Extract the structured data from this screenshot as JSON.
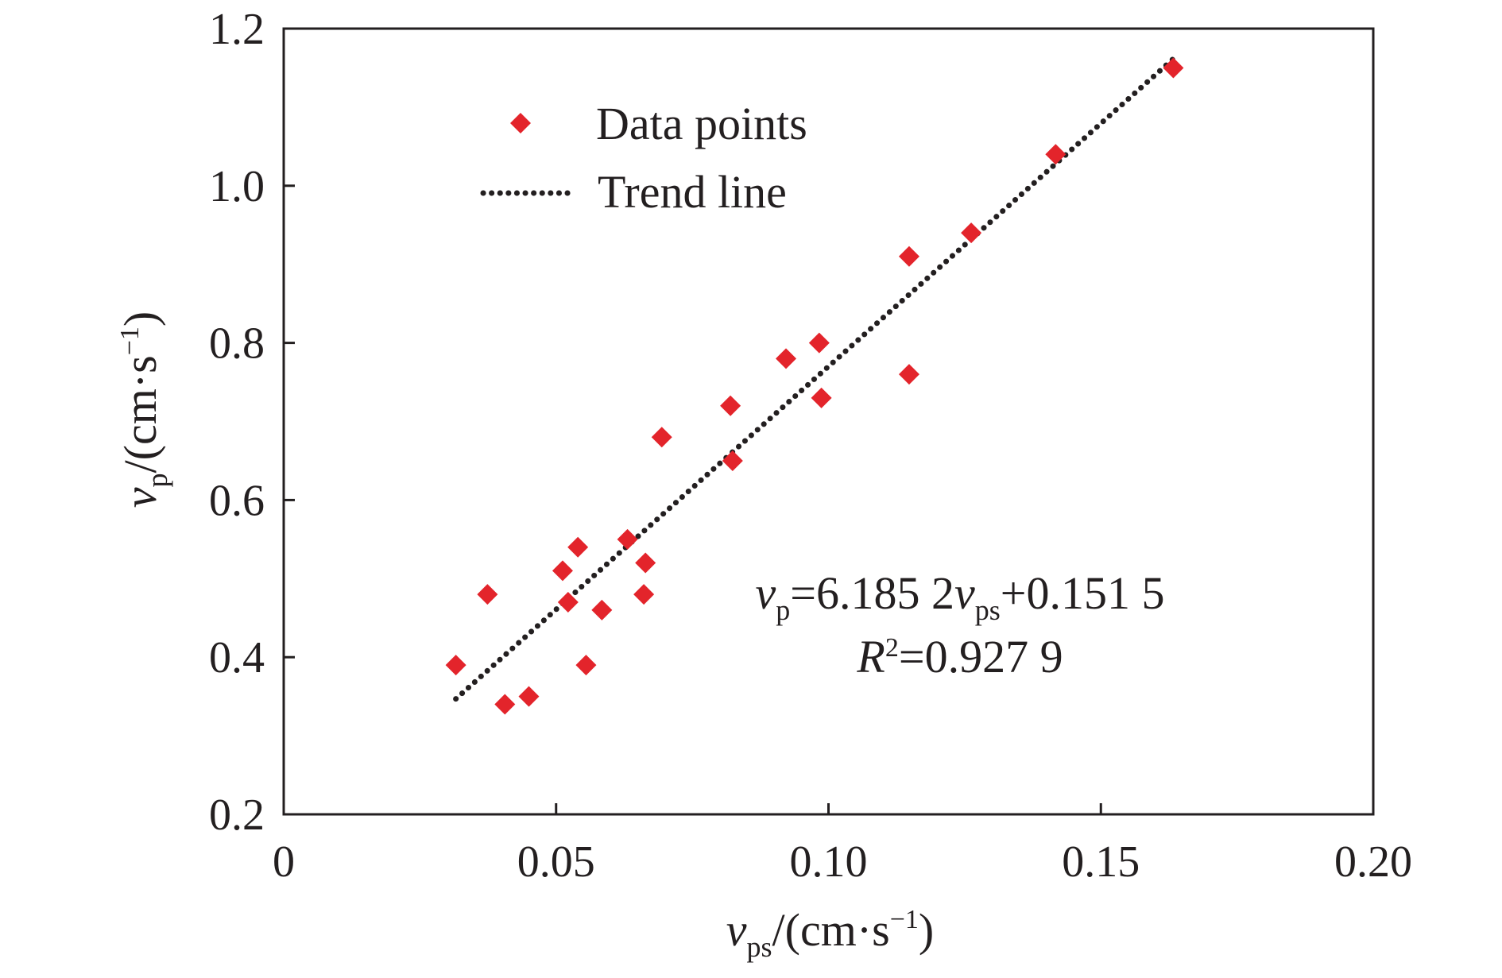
{
  "chart_data": {
    "type": "scatter",
    "title": "",
    "xlim": [
      0,
      0.2
    ],
    "ylim": [
      0.2,
      1.2
    ],
    "x_ticks": [
      "0",
      "0.05",
      "0.10",
      "0.15",
      "0.20"
    ],
    "y_ticks": [
      "0.2",
      "0.4",
      "0.6",
      "0.8",
      "1.0",
      "1.2"
    ],
    "x_tick_values": [
      0,
      0.05,
      0.1,
      0.15,
      0.2
    ],
    "y_tick_values": [
      0.2,
      0.4,
      0.6,
      0.8,
      1.0,
      1.2
    ],
    "xlabel": {
      "symbol": "v",
      "subscript": "ps",
      "unit_open": "/(cm·s",
      "unit_sup": "−1",
      "unit_close": ")"
    },
    "ylabel": {
      "symbol": "v",
      "subscript": "p",
      "unit_open": "/(cm·s",
      "unit_sup": "−1",
      "unit_close": ")"
    },
    "grid": false,
    "legend": {
      "placement": "top-left",
      "entries": [
        {
          "label": "Data points",
          "marker": "diamond"
        },
        {
          "label": "Trend line",
          "marker": "dotted-line"
        }
      ]
    },
    "series": [
      {
        "name": "Data points",
        "marker": "diamond",
        "color": "#e3242b",
        "points": [
          [
            0.0316,
            0.39
          ],
          [
            0.0374,
            0.48
          ],
          [
            0.0406,
            0.34
          ],
          [
            0.045,
            0.35
          ],
          [
            0.0512,
            0.51
          ],
          [
            0.0522,
            0.47
          ],
          [
            0.054,
            0.54
          ],
          [
            0.0555,
            0.39
          ],
          [
            0.0584,
            0.46
          ],
          [
            0.0631,
            0.55
          ],
          [
            0.0661,
            0.48
          ],
          [
            0.0664,
            0.52
          ],
          [
            0.0694,
            0.68
          ],
          [
            0.082,
            0.72
          ],
          [
            0.0824,
            0.65
          ],
          [
            0.0922,
            0.78
          ],
          [
            0.0983,
            0.8
          ],
          [
            0.0987,
            0.73
          ],
          [
            0.1148,
            0.91
          ],
          [
            0.1148,
            0.76
          ],
          [
            0.1262,
            0.94
          ],
          [
            0.1417,
            1.04
          ],
          [
            0.1633,
            1.15
          ]
        ]
      },
      {
        "name": "Trend line",
        "type": "line",
        "style": "dotted",
        "color": "#231f20",
        "slope": 6.1852,
        "intercept": 0.1515,
        "x_range": [
          0.0316,
          0.1633
        ]
      }
    ],
    "annotation": {
      "eq_lhs": "v",
      "eq_lhs_sub": "p",
      "eq_mid": "=6.185 2",
      "eq_var": "v",
      "eq_var_sub": "ps",
      "eq_rhs": "+0.151 5",
      "r2_sym": "R",
      "r2_sup": "2",
      "r2_rhs": "=0.927 9"
    }
  },
  "colors": {
    "marker": "#e3242b",
    "trend": "#231f20",
    "axis": "#231f20",
    "text": "#231f20"
  }
}
